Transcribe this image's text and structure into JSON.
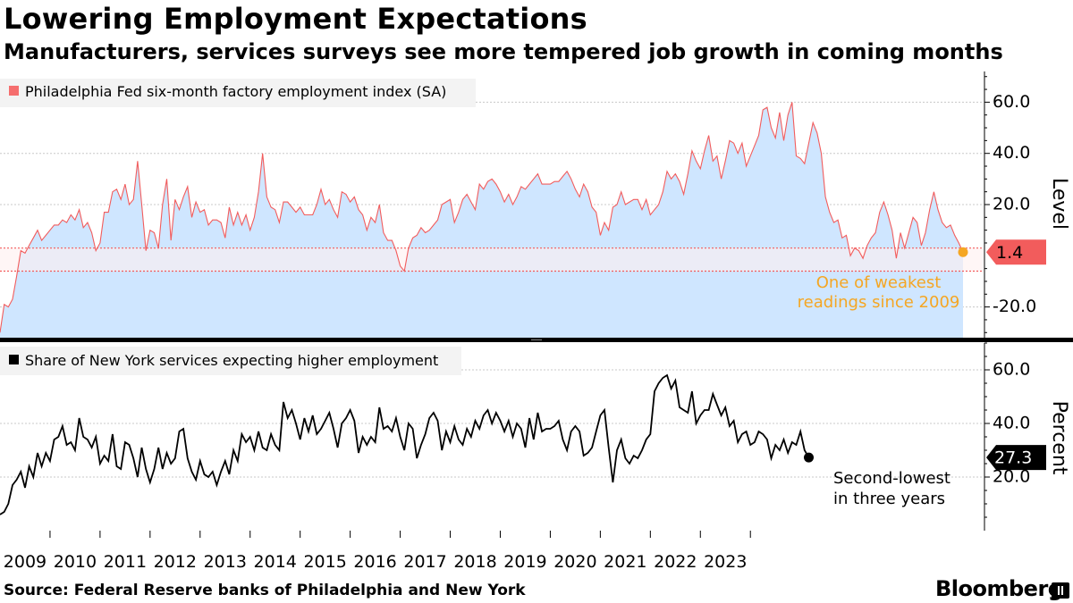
{
  "title": "Lowering Employment Expectations",
  "subtitle": "Manufacturers, services surveys see more tempered job growth in coming months",
  "source": "Source: Federal Reserve banks of Philadelphia and New York",
  "brand": "Bloomberg",
  "colors": {
    "philly_line": "#f25c5c",
    "philly_fill": "#cfe6ff",
    "philly_legend": "#f56e6e",
    "callout_orange": "#f5a623",
    "ny_line": "#000000",
    "band": "#fff0f0"
  },
  "chart_data": [
    {
      "type": "area",
      "legend": "Philadelphia Fed six-month factory employment index (SA)",
      "axis_label": "Level",
      "ylim": [
        -32,
        72
      ],
      "yticks": [
        60.0,
        40.0,
        20.0,
        -20.0
      ],
      "ytick_labels": [
        "60.0",
        "40.0",
        "20.0",
        "-20.0"
      ],
      "highlight_band": [
        -6,
        3
      ],
      "last_value_label": "1.4",
      "annotation": "One of weakest readings since 2009",
      "x_start": 2009.0,
      "x_step": 0.083333,
      "values": [
        -30,
        -19,
        -20,
        -17,
        -8,
        2,
        1,
        4,
        7,
        10,
        6,
        8,
        10,
        12,
        12,
        14,
        13,
        16,
        14,
        18,
        11,
        13,
        9,
        2,
        5,
        17,
        17,
        25,
        26,
        22,
        28,
        20,
        22,
        37,
        20,
        2,
        10,
        9,
        3,
        20,
        30,
        6,
        22,
        18,
        23,
        27,
        15,
        21,
        17,
        18,
        12,
        14,
        14,
        13,
        7,
        19,
        12,
        17,
        12,
        16,
        10,
        15,
        25,
        40,
        23,
        19,
        18,
        13,
        21,
        21,
        19,
        17,
        19,
        16,
        16,
        16,
        20,
        26,
        20,
        22,
        18,
        15,
        25,
        24,
        21,
        23,
        18,
        16,
        10,
        15,
        13,
        20,
        9,
        6,
        6,
        2,
        -4,
        -6,
        3,
        7,
        8,
        11,
        9,
        10,
        12,
        14,
        20,
        21,
        22,
        13,
        17,
        22,
        24,
        21,
        18,
        28,
        26,
        29,
        30,
        28,
        25,
        21,
        24,
        20,
        23,
        27,
        26,
        28,
        30,
        32,
        28,
        28,
        28,
        29,
        29,
        31,
        33,
        30,
        26,
        23,
        28,
        25,
        19,
        17,
        8,
        13,
        10,
        19,
        20,
        25,
        20,
        21,
        22,
        22,
        18,
        22,
        16,
        18,
        20,
        25,
        33,
        30,
        32,
        29,
        24,
        32,
        41,
        37,
        34,
        41,
        47,
        37,
        39,
        30,
        37,
        45,
        44,
        40,
        44,
        35,
        39,
        43,
        47,
        57,
        58,
        50,
        46,
        56,
        45,
        55,
        60,
        39,
        38,
        36,
        44,
        52,
        48,
        40,
        23,
        17,
        13,
        14,
        7,
        8,
        0,
        3,
        2,
        -1,
        4,
        7,
        9,
        17,
        21,
        16,
        10,
        -1,
        9,
        3,
        9,
        15,
        13,
        4,
        9,
        18,
        25,
        18,
        13,
        11,
        12,
        8,
        5,
        1.4
      ]
    },
    {
      "type": "line",
      "legend": "Share of New York services expecting higher employment",
      "axis_label": "Percent",
      "ylim": [
        0,
        70
      ],
      "yticks": [
        60.0,
        40.0,
        20.0
      ],
      "ytick_labels": [
        "60.0",
        "40.0",
        "20.0"
      ],
      "last_value_label": "27.3",
      "annotation": "Second-lowest in three years",
      "x_start": 2009.0,
      "x_step": 0.083333,
      "values": [
        6,
        7,
        10,
        17,
        19,
        22,
        16,
        24,
        20,
        29,
        24,
        29,
        26,
        34,
        35,
        39,
        32,
        33,
        30,
        42,
        35,
        34,
        31,
        35,
        25,
        28,
        26,
        36,
        24,
        23,
        33,
        32,
        27,
        20,
        31,
        23,
        18,
        23,
        31,
        23,
        29,
        25,
        27,
        37,
        38,
        27,
        22,
        19,
        26,
        21,
        20,
        22,
        17,
        22,
        26,
        21,
        30,
        26,
        36,
        33,
        35,
        30,
        37,
        31,
        30,
        36,
        32,
        30,
        48,
        42,
        45,
        40,
        34,
        42,
        37,
        43,
        36,
        38,
        41,
        44,
        38,
        31,
        40,
        42,
        45,
        41,
        29,
        35,
        32,
        35,
        33,
        46,
        38,
        39,
        37,
        42,
        35,
        30,
        40,
        38,
        27,
        32,
        36,
        42,
        44,
        41,
        30,
        37,
        33,
        39,
        34,
        32,
        38,
        35,
        41,
        38,
        43,
        45,
        40,
        44,
        41,
        37,
        41,
        35,
        40,
        38,
        31,
        42,
        34,
        44,
        37,
        38,
        38,
        39,
        41,
        34,
        30,
        37,
        39,
        37,
        28,
        29,
        31,
        37,
        43,
        45,
        31,
        18,
        30,
        34,
        27,
        25,
        28,
        27,
        30,
        34,
        36,
        52,
        55,
        57,
        58,
        53,
        56,
        46,
        45,
        44,
        52,
        40,
        43,
        45,
        45,
        51,
        47,
        43,
        46,
        39,
        41,
        33,
        36,
        37,
        32,
        33,
        37,
        36,
        34,
        27,
        32,
        30,
        34,
        29,
        33,
        32,
        37,
        30,
        27.3
      ]
    }
  ],
  "x_axis": {
    "years": [
      "2009",
      "2010",
      "2011",
      "2012",
      "2013",
      "2014",
      "2015",
      "2016",
      "2017",
      "2018",
      "2019",
      "2020",
      "2021",
      "2022",
      "2023"
    ]
  }
}
